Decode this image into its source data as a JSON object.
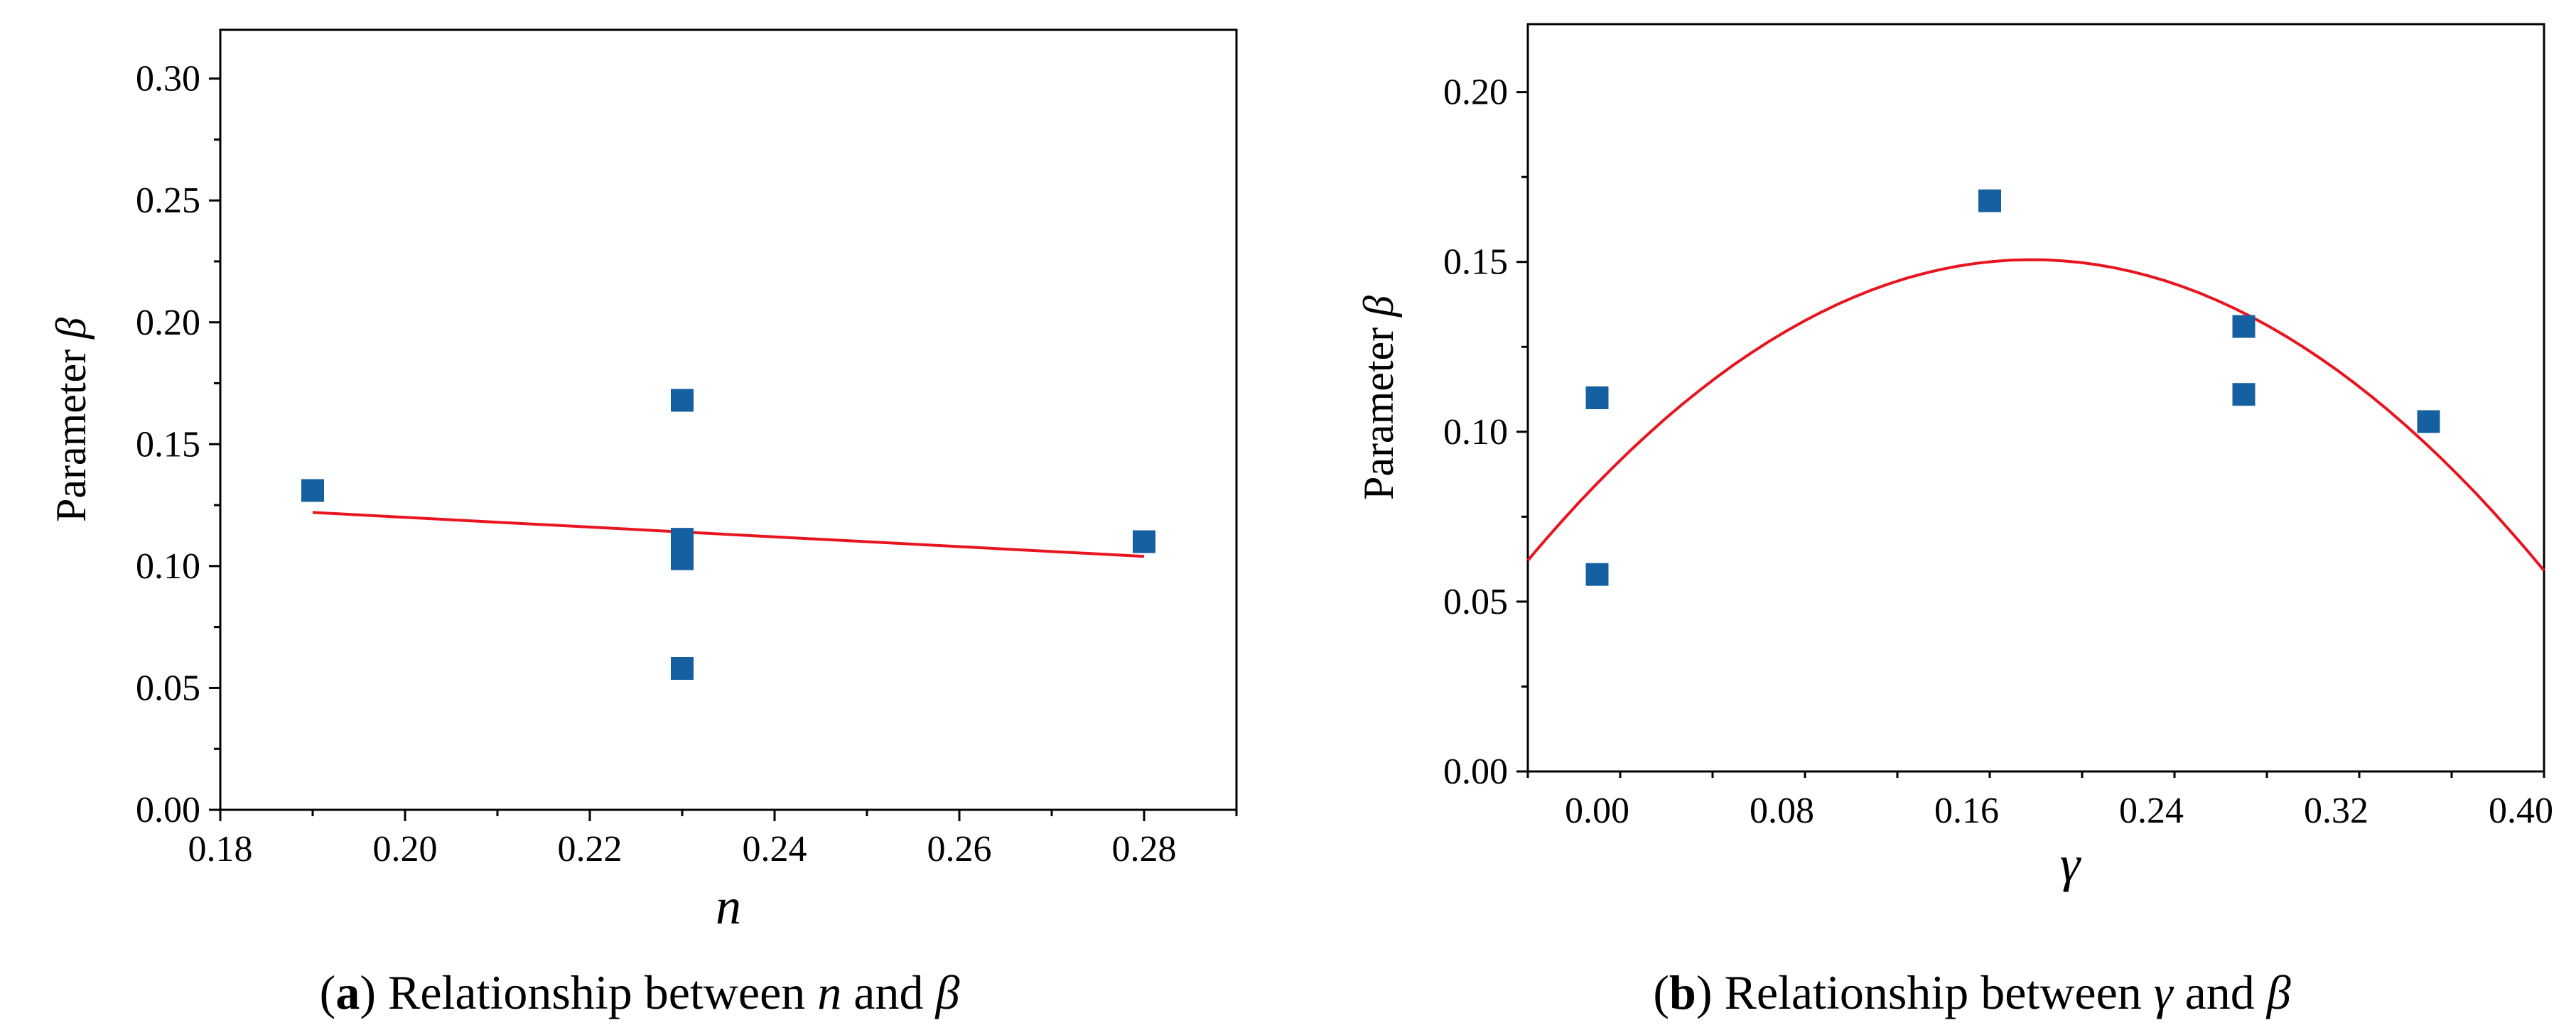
{
  "colors": {
    "marker": "#1560a0",
    "fit_line": "#e8141e",
    "axis": "#000000"
  },
  "chart_data": [
    {
      "type": "scatter",
      "panel_label": "a",
      "caption": {
        "prefix": "(",
        "label": "a",
        "close": ")",
        "text1": " Relationship between ",
        "var1": "n",
        "text2": " and ",
        "var2": "β"
      },
      "xlabel": "n",
      "ylabel": {
        "text": "Parameter ",
        "symbol": "β"
      },
      "xlim": [
        0.18,
        0.29
      ],
      "ylim": [
        0.0,
        0.32
      ],
      "xticks": [
        0.18,
        0.2,
        0.22,
        0.24,
        0.26,
        0.28
      ],
      "xtick_labels": [
        "0.18",
        "0.20",
        "0.22",
        "0.24",
        "0.26",
        "0.28"
      ],
      "yticks": [
        0.0,
        0.05,
        0.1,
        0.15,
        0.2,
        0.25,
        0.3
      ],
      "ytick_labels": [
        "0.00",
        "0.05",
        "0.10",
        "0.15",
        "0.20",
        "0.25",
        "0.30"
      ],
      "points": [
        {
          "x": 0.19,
          "y": 0.131
        },
        {
          "x": 0.23,
          "y": 0.168
        },
        {
          "x": 0.23,
          "y": 0.111
        },
        {
          "x": 0.23,
          "y": 0.103
        },
        {
          "x": 0.23,
          "y": 0.058
        },
        {
          "x": 0.28,
          "y": 0.11
        }
      ],
      "fit": {
        "kind": "linear",
        "x_range": [
          0.19,
          0.28
        ],
        "coeffs": [
          0.16,
          -0.2
        ]
      }
    },
    {
      "type": "scatter",
      "panel_label": "b",
      "caption": {
        "prefix": "(",
        "label": "b",
        "close": ")",
        "text1": " Relationship between ",
        "var1": "γ",
        "text2": " and ",
        "var2": "β"
      },
      "xlabel": "γ",
      "ylabel": {
        "text": "Parameter ",
        "symbol": "β"
      },
      "xlim": [
        -0.03,
        0.41
      ],
      "ylim": [
        0.0,
        0.22
      ],
      "xticks": [
        0.0,
        0.08,
        0.16,
        0.24,
        0.32,
        0.4
      ],
      "xtick_labels": [
        "0.00",
        "0.08",
        "0.16",
        "0.24",
        "0.32",
        "0.40"
      ],
      "yticks": [
        0.0,
        0.05,
        0.1,
        0.15,
        0.2
      ],
      "ytick_labels": [
        "0.00",
        "0.05",
        "0.10",
        "0.15",
        "0.20"
      ],
      "points": [
        {
          "x": 0.0,
          "y": 0.11
        },
        {
          "x": 0.0,
          "y": 0.058
        },
        {
          "x": 0.17,
          "y": 0.168
        },
        {
          "x": 0.28,
          "y": 0.131
        },
        {
          "x": 0.28,
          "y": 0.111
        },
        {
          "x": 0.36,
          "y": 0.103
        }
      ],
      "fit": {
        "kind": "quadratic",
        "x_range": [
          -0.03,
          0.41
        ],
        "coeffs": [
          0.0848,
          0.7,
          -1.86
        ]
      }
    }
  ]
}
